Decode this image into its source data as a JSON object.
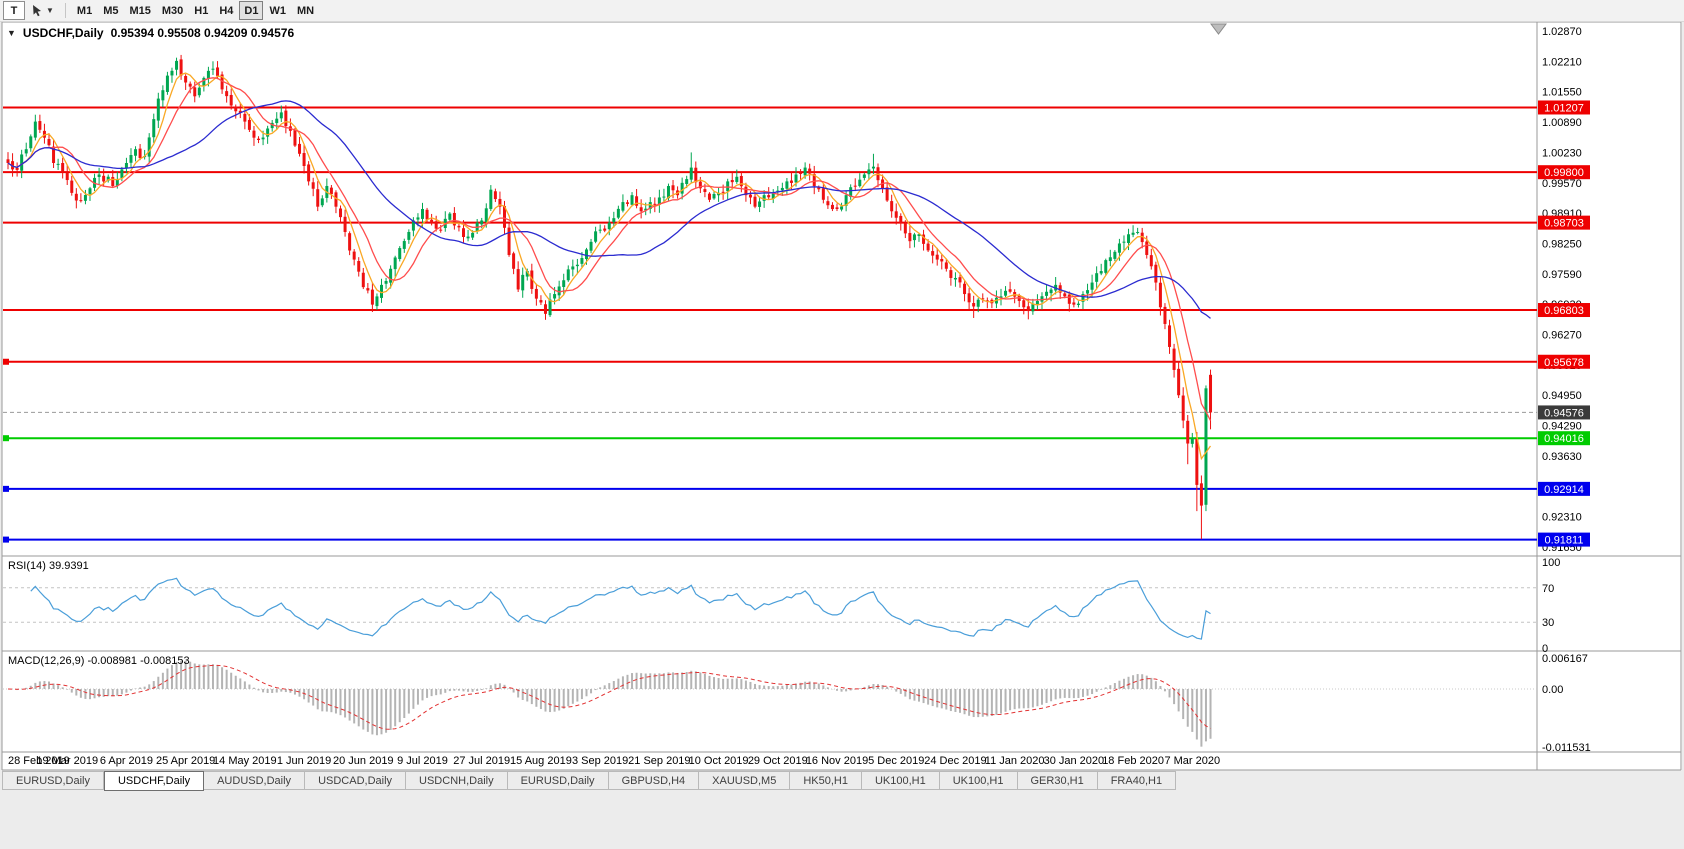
{
  "toolbar": {
    "tool_button": "T",
    "timeframes": [
      "M1",
      "M5",
      "M15",
      "M30",
      "H1",
      "H4",
      "D1",
      "W1",
      "MN"
    ],
    "active_timeframe": "D1"
  },
  "chart": {
    "expander_icon": "▼",
    "title_symbol": "USDCHF,Daily",
    "title_ohlc": "0.95394 0.95508 0.94209 0.94576"
  },
  "chart_data": {
    "type": "candlestick",
    "symbol": "USDCHF",
    "period": "Daily",
    "candle_count": 265,
    "last_candle": {
      "open": 0.95394,
      "high": 0.95508,
      "low": 0.94209,
      "close": 0.94576
    },
    "current_price": {
      "value": 0.94576,
      "label": "0.94576",
      "badge_color": "#3a3a3a",
      "line_color": "#9a9a9a"
    },
    "x_axis_dates": [
      "28 Feb 2019",
      "19 Mar 2019",
      "6 Apr 2019",
      "25 Apr 2019",
      "14 May 2019",
      "1 Jun 2019",
      "20 Jun 2019",
      "9 Jul 2019",
      "27 Jul 2019",
      "15 Aug 2019",
      "3 Sep 2019",
      "21 Sep 2019",
      "10 Oct 2019",
      "29 Oct 2019",
      "16 Nov 2019",
      "5 Dec 2019",
      "24 Dec 2019",
      "11 Jan 2020",
      "30 Jan 2020",
      "18 Feb 2020",
      "7 Mar 2020"
    ],
    "y_axis_ticks": [
      "1.02870",
      "1.02210",
      "1.01550",
      "1.00890",
      "1.00230",
      "0.99570",
      "0.98910",
      "0.98250",
      "0.97590",
      "0.96930",
      "0.96270",
      "0.95610",
      "0.94950",
      "0.94290",
      "0.93630",
      "0.92970",
      "0.92310",
      "0.91650"
    ],
    "horizontal_lines": [
      {
        "price": 1.01207,
        "label": "1.01207",
        "color": "#ee0000",
        "left_marker": false
      },
      {
        "price": 0.998,
        "label": "0.99800",
        "color": "#ee0000",
        "left_marker": false
      },
      {
        "price": 0.98703,
        "label": "0.98703",
        "color": "#ee0000",
        "left_marker": false
      },
      {
        "price": 0.96803,
        "label": "0.96803",
        "color": "#ee0000",
        "left_marker": false
      },
      {
        "price": 0.95678,
        "label": "0.95678",
        "color": "#ee0000",
        "left_marker": true
      },
      {
        "price": 0.94016,
        "label": "0.94016",
        "color": "#00cc00",
        "left_marker": true
      },
      {
        "price": 0.92914,
        "label": "0.92914",
        "color": "#0000ee",
        "left_marker": true
      },
      {
        "price": 0.91811,
        "label": "0.91811",
        "color": "#0000ee",
        "left_marker": true
      }
    ],
    "colors": {
      "up": "#00a651",
      "down": "#ee1111",
      "background": "#ffffff",
      "axis_text": "#000000",
      "frame": "#9a9a9a"
    },
    "moving_averages": [
      {
        "period": 5,
        "color": "#f9a825"
      },
      {
        "period": 10,
        "color": "#ff4d4d"
      },
      {
        "period": 30,
        "color": "#2b2bd0"
      }
    ],
    "close_path_anchors": [
      [
        0,
        1.0
      ],
      [
        2,
        0.9985
      ],
      [
        4,
        1.003
      ],
      [
        6,
        1.009
      ],
      [
        8,
        1.0055
      ],
      [
        10,
        1.0
      ],
      [
        12,
        0.998
      ],
      [
        14,
        0.9935
      ],
      [
        16,
        0.9918
      ],
      [
        18,
        0.9945
      ],
      [
        20,
        0.9975
      ],
      [
        23,
        0.995
      ],
      [
        26,
        1.0
      ],
      [
        28,
        1.003
      ],
      [
        30,
        1.0015
      ],
      [
        33,
        1.014
      ],
      [
        35,
        1.019
      ],
      [
        37,
        1.0222
      ],
      [
        39,
        1.0175
      ],
      [
        41,
        1.0145
      ],
      [
        43,
        1.0185
      ],
      [
        45,
        1.0205
      ],
      [
        47,
        1.016
      ],
      [
        49,
        1.0125
      ],
      [
        52,
        1.009
      ],
      [
        55,
        1.005
      ],
      [
        57,
        1.0075
      ],
      [
        60,
        1.011
      ],
      [
        62,
        1.007
      ],
      [
        64,
        1.002
      ],
      [
        66,
        0.996
      ],
      [
        68,
        0.9905
      ],
      [
        70,
        0.995
      ],
      [
        72,
        0.9905
      ],
      [
        74,
        0.985
      ],
      [
        76,
        0.979
      ],
      [
        78,
        0.973
      ],
      [
        80,
        0.9692
      ],
      [
        82,
        0.9735
      ],
      [
        84,
        0.977
      ],
      [
        86,
        0.9815
      ],
      [
        88,
        0.985
      ],
      [
        91,
        0.99
      ],
      [
        93,
        0.987
      ],
      [
        95,
        0.9855
      ],
      [
        97,
        0.989
      ],
      [
        99,
        0.986
      ],
      [
        101,
        0.984
      ],
      [
        104,
        0.9875
      ],
      [
        106,
        0.9942
      ],
      [
        108,
        0.9905
      ],
      [
        110,
        0.98
      ],
      [
        112,
        0.9725
      ],
      [
        114,
        0.9765
      ],
      [
        116,
        0.9705
      ],
      [
        118,
        0.9672
      ],
      [
        120,
        0.9715
      ],
      [
        122,
        0.9745
      ],
      [
        124,
        0.9775
      ],
      [
        127,
        0.9812
      ],
      [
        130,
        0.9855
      ],
      [
        133,
        0.988
      ],
      [
        135,
        0.9915
      ],
      [
        137,
        0.993
      ],
      [
        139,
        0.9895
      ],
      [
        141,
        0.9915
      ],
      [
        143,
        0.9925
      ],
      [
        145,
        0.995
      ],
      [
        147,
        0.993
      ],
      [
        149,
        0.9965
      ],
      [
        150,
        0.999
      ],
      [
        152,
        0.9945
      ],
      [
        154,
        0.992
      ],
      [
        156,
        0.9935
      ],
      [
        158,
        0.996
      ],
      [
        160,
        0.997
      ],
      [
        162,
        0.993
      ],
      [
        164,
        0.9905
      ],
      [
        166,
        0.993
      ],
      [
        169,
        0.994
      ],
      [
        171,
        0.996
      ],
      [
        173,
        0.9975
      ],
      [
        175,
        0.999
      ],
      [
        177,
        0.995
      ],
      [
        179,
        0.992
      ],
      [
        182,
        0.99
      ],
      [
        184,
        0.993
      ],
      [
        186,
        0.995
      ],
      [
        188,
        0.9975
      ],
      [
        190,
        0.9992
      ],
      [
        192,
        0.9945
      ],
      [
        194,
        0.9895
      ],
      [
        196,
        0.987
      ],
      [
        198,
        0.983
      ],
      [
        200,
        0.9845
      ],
      [
        202,
        0.981
      ],
      [
        204,
        0.979
      ],
      [
        206,
        0.977
      ],
      [
        208,
        0.975
      ],
      [
        210,
        0.9715
      ],
      [
        212,
        0.9688
      ],
      [
        214,
        0.9705
      ],
      [
        216,
        0.9695
      ],
      [
        218,
        0.971
      ],
      [
        220,
        0.972
      ],
      [
        222,
        0.97
      ],
      [
        224,
        0.9678
      ],
      [
        226,
        0.97
      ],
      [
        228,
        0.972
      ],
      [
        230,
        0.9735
      ],
      [
        232,
        0.971
      ],
      [
        234,
        0.9692
      ],
      [
        236,
        0.9715
      ],
      [
        238,
        0.974
      ],
      [
        240,
        0.9765
      ],
      [
        242,
        0.9795
      ],
      [
        244,
        0.9825
      ],
      [
        246,
        0.9845
      ],
      [
        248,
        0.985
      ],
      [
        250,
        0.98
      ],
      [
        252,
        0.974
      ],
      [
        254,
        0.965
      ],
      [
        255,
        0.96
      ],
      [
        256,
        0.955
      ],
      [
        257,
        0.9495
      ],
      [
        258,
        0.944
      ],
      [
        259,
        0.939
      ],
      [
        260,
        0.94
      ],
      [
        261,
        0.93
      ],
      [
        262,
        0.9255
      ],
      [
        263,
        0.951
      ],
      [
        264,
        0.94576
      ]
    ],
    "wick_overrides": {
      "6": {
        "h": 1.0105
      },
      "37": {
        "h": 1.0229
      },
      "80": {
        "l": 0.9676
      },
      "106": {
        "h": 0.9952
      },
      "118": {
        "l": 0.9659
      },
      "150": {
        "h": 1.0023
      },
      "190": {
        "h": 1.002
      },
      "212": {
        "l": 0.9663
      },
      "224": {
        "l": 0.966
      },
      "259": {
        "l": 0.9345
      },
      "261": {
        "l": 0.9243
      },
      "262": {
        "l": 0.9182
      }
    },
    "noise_seed": 20200307,
    "noise_amp": 0.0012,
    "indicators": {
      "rsi": {
        "label": "RSI(14) 39.9391",
        "period": 14,
        "value": 39.9391,
        "levels": [
          100,
          70,
          30,
          0
        ],
        "dashed_levels": [
          70,
          30
        ],
        "color": "#4a9ed9"
      },
      "macd": {
        "label": "MACD(12,26,9) -0.008981 -0.008153",
        "fast": 12,
        "slow": 26,
        "signal": 9,
        "macd_value": -0.008981,
        "signal_value": -0.008153,
        "axis_max": 0.006167,
        "axis_min": -0.011531,
        "axis_labels": [
          "0.006167",
          "0.00",
          "-0.011531"
        ],
        "histogram_color": "#b4b4b4",
        "signal_color": "#e23232"
      }
    }
  },
  "tabs": {
    "items": [
      {
        "label": "EURUSD,Daily",
        "active": false
      },
      {
        "label": "USDCHF,Daily",
        "active": true
      },
      {
        "label": "AUDUSD,Daily",
        "active": false
      },
      {
        "label": "USDCAD,Daily",
        "active": false
      },
      {
        "label": "USDCNH,Daily",
        "active": false
      },
      {
        "label": "EURUSD,Daily",
        "active": false
      },
      {
        "label": "GBPUSD,H4",
        "active": false
      },
      {
        "label": "XAUUSD,M5",
        "active": false
      },
      {
        "label": "HK50,H1",
        "active": false
      },
      {
        "label": "UK100,H1",
        "active": false
      },
      {
        "label": "UK100,H1",
        "active": false
      },
      {
        "label": "GER30,H1",
        "active": false
      },
      {
        "label": "FRA40,H1",
        "active": false
      }
    ]
  }
}
